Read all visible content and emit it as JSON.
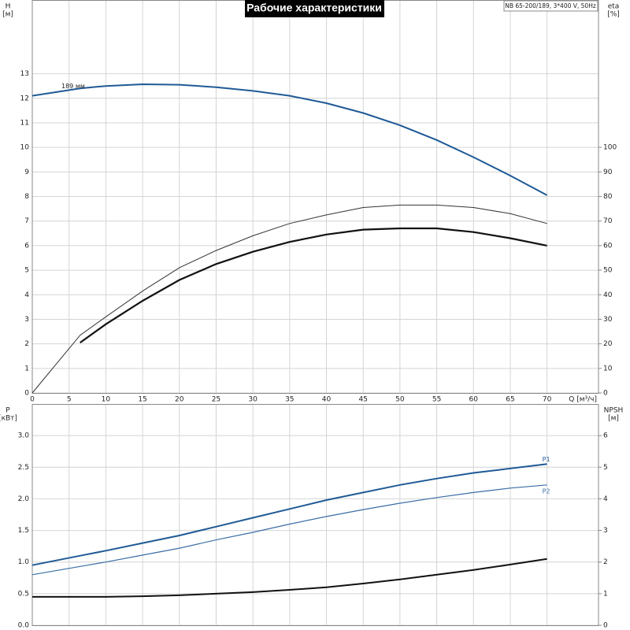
{
  "chart_data": [
    {
      "type": "line",
      "title": "Рабочие характеристики",
      "annotation": "NB 65-200/189, 3*400 V, 50Hz",
      "ylabel": "H",
      "yunit": "[м]",
      "y2label": "eta",
      "y2unit": "[%]",
      "xlabel": "Q [м³/ч]",
      "x": [
        0,
        6.5,
        10,
        15,
        20,
        25,
        30,
        35,
        40,
        45,
        50,
        55,
        60,
        65,
        70
      ],
      "xlim": [
        0,
        77
      ],
      "xticks": [
        0,
        5,
        10,
        15,
        20,
        25,
        30,
        35,
        40,
        45,
        50,
        55,
        60,
        65,
        70
      ],
      "ylim": [
        0,
        16
      ],
      "yticks": [
        0,
        1,
        2,
        3,
        4,
        5,
        6,
        7,
        8,
        9,
        10,
        11,
        12,
        13
      ],
      "y2lim": [
        0,
        160
      ],
      "y2ticks": [
        0,
        10,
        20,
        30,
        40,
        50,
        60,
        70,
        80,
        90,
        100
      ],
      "grid": true,
      "legend": "line-start",
      "series": [
        {
          "name": "189 мм",
          "color": "#1f5a96",
          "linewidth": 2,
          "values": [
            12.1,
            12.4,
            12.5,
            12.57,
            12.55,
            12.45,
            12.3,
            12.1,
            11.8,
            11.4,
            10.9,
            10.3,
            9.6,
            8.85,
            8.05
          ]
        },
        {
          "color": "#111111",
          "linewidth": 2.2,
          "axis": "y2",
          "values": [
            null,
            20.5,
            28,
            37.5,
            46,
            52.5,
            57.5,
            61.5,
            64.5,
            66.5,
            67,
            67,
            65.5,
            63,
            60
          ]
        },
        {
          "color": "#333333",
          "linewidth": 1,
          "axis": "y2",
          "values": [
            0,
            23.5,
            31,
            41.5,
            51,
            58,
            64,
            69,
            72.5,
            75.5,
            76.5,
            76.5,
            75.5,
            73,
            69
          ]
        }
      ]
    },
    {
      "type": "line",
      "ylabel": "P",
      "yunit": "[кВт]",
      "y2label": "NPSH",
      "y2unit": "[м]",
      "x": [
        0,
        6.5,
        10,
        15,
        20,
        25,
        30,
        35,
        40,
        45,
        50,
        55,
        60,
        65,
        70
      ],
      "xlim": [
        0,
        77
      ],
      "ylim": [
        0,
        3.5
      ],
      "yticks": [
        {
          "value": 0,
          "label": "0.0"
        },
        0.5,
        {
          "value": 1,
          "label": "1.0"
        },
        1.5,
        {
          "value": 2,
          "label": "2.0"
        },
        2.5,
        {
          "value": 3,
          "label": "3.0"
        }
      ],
      "y2lim": [
        0,
        7
      ],
      "y2ticks": [
        0,
        1,
        2,
        3,
        4,
        5,
        6
      ],
      "grid": true,
      "legend": "line-end",
      "series": [
        {
          "name": "P1",
          "color": "#1f5a96",
          "linewidth": 2,
          "values": [
            0.95,
            1.1,
            1.18,
            1.3,
            1.42,
            1.56,
            1.7,
            1.84,
            1.98,
            2.1,
            2.22,
            2.32,
            2.41,
            2.48,
            2.55
          ]
        },
        {
          "name": "P2",
          "color": "#3a6ea5",
          "linewidth": 1.2,
          "values": [
            0.8,
            0.93,
            1.0,
            1.11,
            1.22,
            1.35,
            1.47,
            1.6,
            1.72,
            1.83,
            1.93,
            2.02,
            2.1,
            2.17,
            2.22
          ]
        },
        {
          "color": "#111111",
          "linewidth": 2,
          "axis": "y2",
          "values": [
            0.9,
            0.9,
            0.9,
            0.92,
            0.95,
            1.0,
            1.05,
            1.12,
            1.2,
            1.32,
            1.45,
            1.6,
            1.75,
            1.92,
            2.1
          ]
        }
      ]
    }
  ]
}
